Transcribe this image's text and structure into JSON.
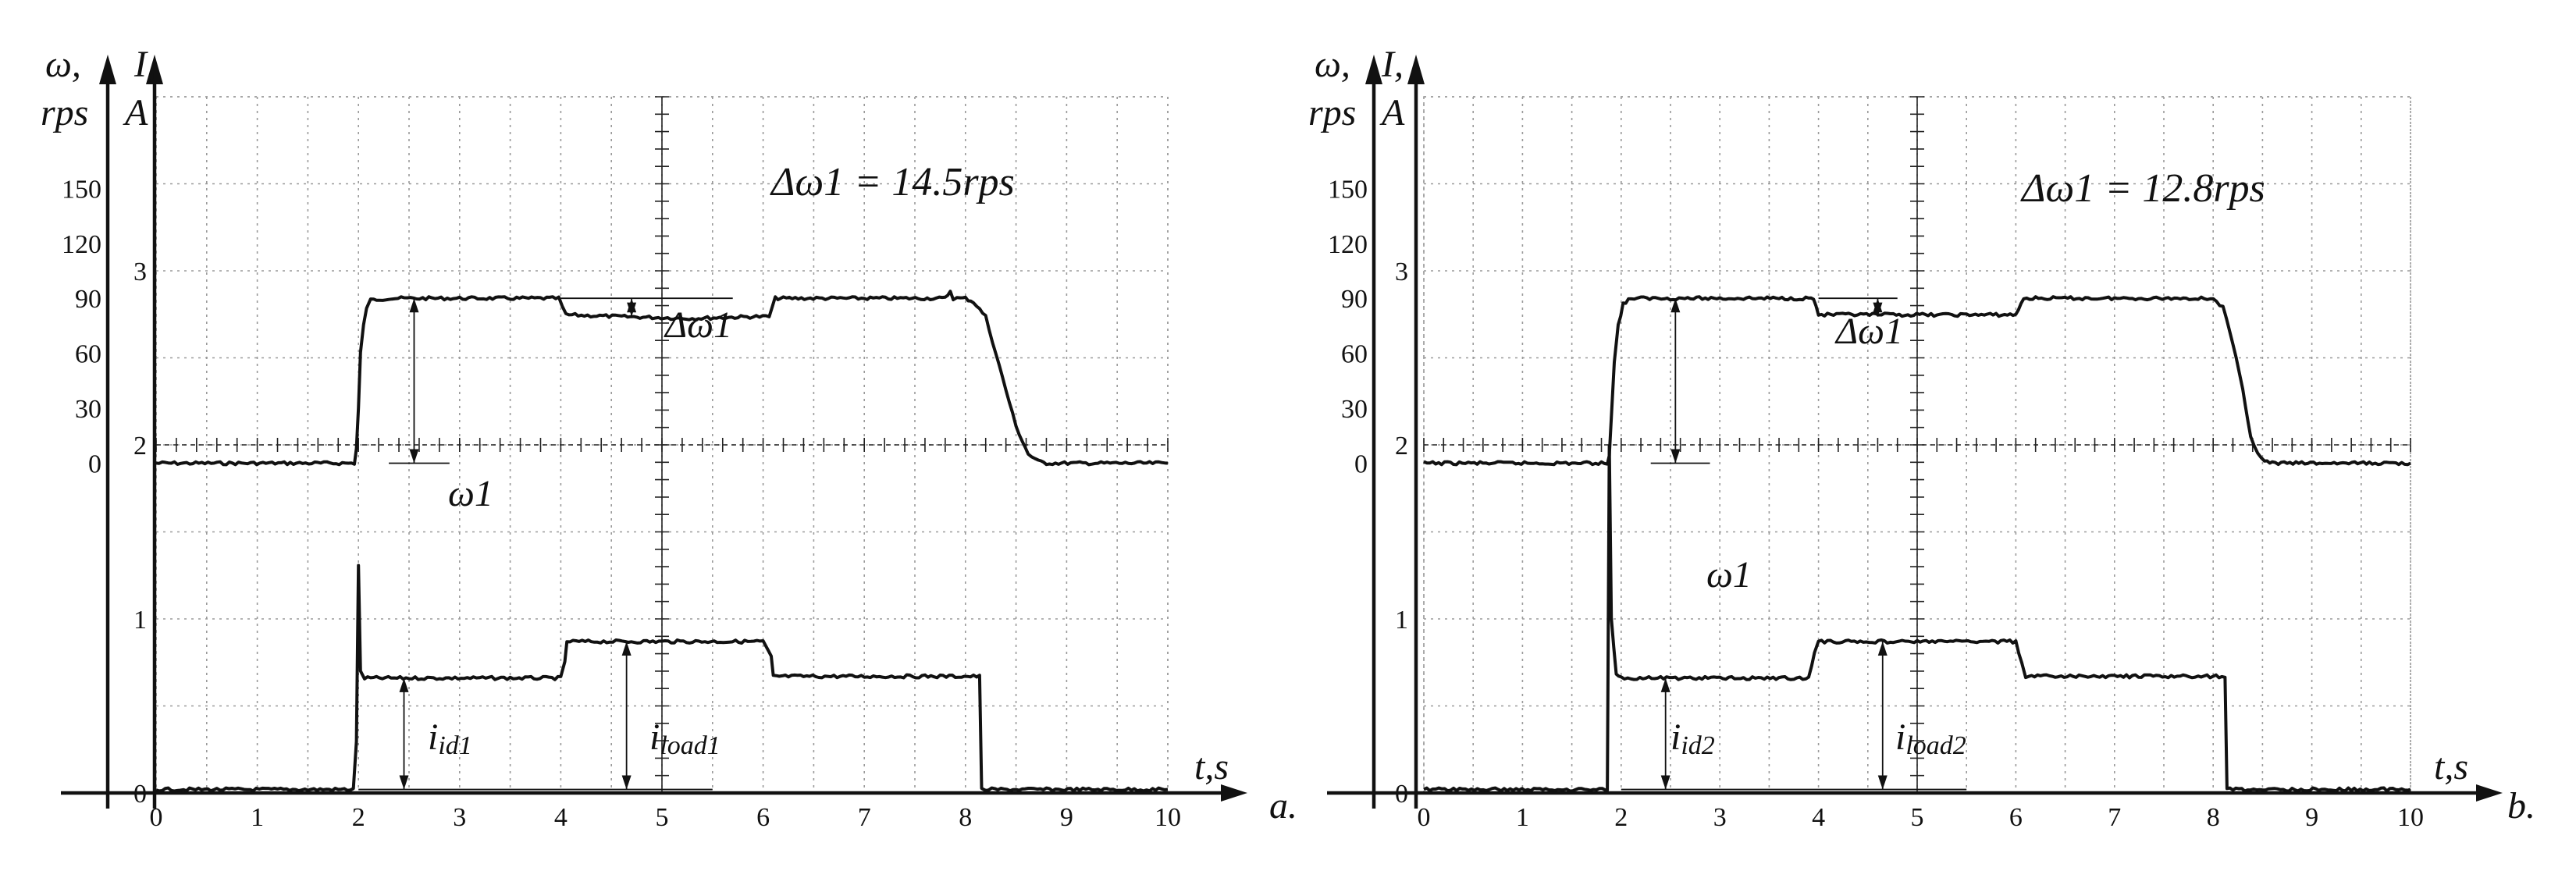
{
  "chart_data": [
    {
      "type": "line",
      "panel_label": "a.",
      "y_left_name": "ω,",
      "y_left_unit": "rps",
      "y_right_name": "I,",
      "y_right_unit": "A",
      "x_axis_label": "t,s",
      "x_ticks": [
        "0",
        "1",
        "2",
        "3",
        "4",
        "5",
        "6",
        "7",
        "8",
        "9",
        "10"
      ],
      "y_left_ticks": [
        "150",
        "120",
        "90",
        "60",
        "30",
        "0"
      ],
      "y_right_ticks": [
        "3",
        "2",
        "1",
        "0"
      ],
      "annotation_main": "Δω1 = 14.5rps",
      "annotation_delta": "Δω1",
      "label_omega": "ω1",
      "label_iid_main": "i",
      "label_iid_sub": "id1",
      "label_iload_main": "i",
      "label_iload_sub": "load1",
      "xlim": [
        0,
        10
      ],
      "ylim_speed": [
        -180,
        200
      ],
      "ylim_current": [
        0,
        4
      ],
      "series": [
        {
          "key": "speed",
          "axis": "left",
          "x": [
            0,
            1.96,
            1.98,
            2.0,
            2.02,
            2.05,
            2.08,
            2.12,
            2.3,
            3.0,
            3.8,
            3.98,
            4.05,
            4.6,
            5.3,
            5.9,
            6.06,
            6.12,
            6.2,
            7.0,
            7.8,
            7.85,
            7.88,
            7.95,
            8.0,
            8.08,
            8.2,
            8.3,
            8.4,
            8.5,
            8.62,
            8.72,
            8.8,
            10.0
          ],
          "y": [
            0,
            0,
            8,
            30,
            60,
            75,
            85,
            89,
            90,
            90,
            90,
            90,
            81,
            80,
            79,
            80,
            80,
            90,
            90,
            90,
            90,
            94,
            90,
            90,
            90,
            88,
            80,
            60,
            40,
            20,
            5,
            1,
            0,
            0
          ]
        },
        {
          "key": "current",
          "axis": "right",
          "x": [
            0,
            1.95,
            1.98,
            2.0,
            2.02,
            2.06,
            2.12,
            2.5,
            3.5,
            4.0,
            4.04,
            4.06,
            5.0,
            6.0,
            6.08,
            6.1,
            7.0,
            8.14,
            8.16,
            8.2,
            10.0
          ],
          "y": [
            0.02,
            0.02,
            0.3,
            1.3,
            0.7,
            0.66,
            0.66,
            0.66,
            0.66,
            0.66,
            0.75,
            0.87,
            0.87,
            0.87,
            0.78,
            0.67,
            0.67,
            0.67,
            0.02,
            0.02,
            0.02
          ]
        }
      ]
    },
    {
      "type": "line",
      "panel_label": "b.",
      "y_left_name": "ω,",
      "y_left_unit": "rps",
      "y_right_name": "I,",
      "y_right_unit": "A",
      "x_axis_label": "t,s",
      "x_ticks": [
        "0",
        "1",
        "2",
        "3",
        "4",
        "5",
        "6",
        "7",
        "8",
        "9",
        "10"
      ],
      "y_left_ticks": [
        "150",
        "120",
        "90",
        "60",
        "30",
        "0"
      ],
      "y_right_ticks": [
        "3",
        "2",
        "1",
        "0"
      ],
      "annotation_main": "Δω1 = 12.8rps",
      "annotation_delta": "Δω1",
      "label_omega": "ω1",
      "label_iid_main": "i",
      "label_iid_sub": "id2",
      "label_iload_main": "i",
      "label_iload_sub": "load2",
      "xlim": [
        0,
        10
      ],
      "ylim_speed": [
        -180,
        200
      ],
      "ylim_current": [
        0,
        4
      ],
      "series": [
        {
          "key": "speed",
          "axis": "left",
          "x": [
            0,
            1.86,
            1.88,
            1.9,
            1.93,
            1.97,
            2.02,
            2.1,
            2.2,
            3.0,
            3.9,
            3.95,
            4.0,
            4.7,
            5.2,
            5.8,
            6.0,
            6.08,
            6.2,
            7.0,
            8.0,
            8.1,
            8.2,
            8.3,
            8.38,
            8.45,
            8.52,
            8.6,
            10.0
          ],
          "y": [
            0,
            0,
            5,
            25,
            55,
            75,
            87,
            90,
            90,
            90,
            90,
            90,
            81,
            81,
            81,
            81,
            81,
            90,
            90,
            90,
            90,
            85,
            65,
            40,
            15,
            5,
            1,
            0,
            0
          ]
        },
        {
          "key": "current",
          "axis": "right",
          "x": [
            0,
            1.84,
            1.86,
            1.88,
            1.9,
            1.95,
            2.0,
            2.1,
            3.0,
            3.9,
            3.96,
            4.0,
            5.0,
            6.0,
            6.06,
            6.1,
            7.0,
            8.12,
            8.14,
            8.2,
            10.0
          ],
          "y": [
            0.02,
            0.02,
            0.02,
            2.0,
            1.0,
            0.69,
            0.66,
            0.66,
            0.66,
            0.66,
            0.8,
            0.87,
            0.87,
            0.87,
            0.75,
            0.67,
            0.67,
            0.67,
            0.02,
            0.02,
            0.02
          ]
        }
      ]
    }
  ]
}
